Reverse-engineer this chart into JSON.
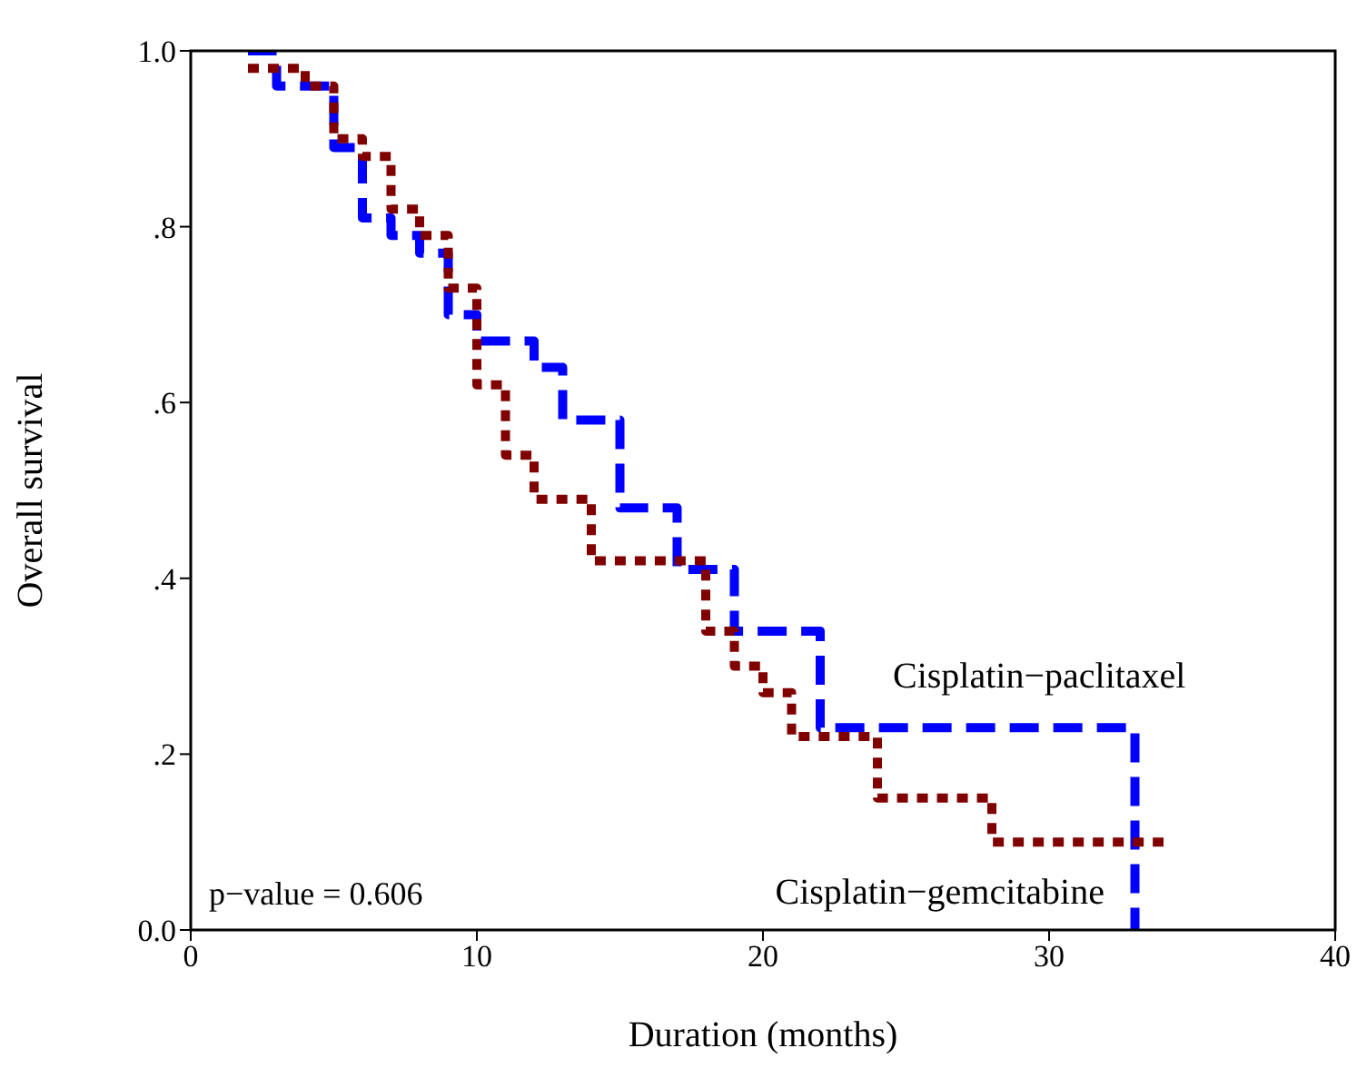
{
  "chart_data": {
    "type": "step",
    "xlabel": "Duration (months)",
    "ylabel": "Overall survival",
    "xlim": [
      0,
      40
    ],
    "xticks": [
      0,
      10,
      20,
      30,
      40
    ],
    "ylim": [
      0,
      1
    ],
    "yticks": [
      {
        "value": 0,
        "label": "0.0"
      },
      {
        "value": 0.2,
        "label": ".2"
      },
      {
        "value": 0.4,
        "label": ".4"
      },
      {
        "value": 0.6,
        "label": ".6"
      },
      {
        "value": 0.8,
        "label": ".8"
      },
      {
        "value": 1,
        "label": "1.0"
      }
    ],
    "marker": "none",
    "series": [
      {
        "name": "Cisplatin−paclitaxel",
        "color": "#0000ff",
        "line_style": "dashed",
        "x": [
          2,
          3,
          5,
          6,
          7,
          8,
          9,
          10,
          12,
          13,
          15,
          17,
          19,
          22,
          33
        ],
        "values": [
          1.0,
          0.96,
          0.89,
          0.81,
          0.79,
          0.77,
          0.7,
          0.67,
          0.64,
          0.58,
          0.48,
          0.41,
          0.34,
          0.23,
          0
        ]
      },
      {
        "name": "Cisplatin−gemcitabine",
        "color": "#800000",
        "line_style": "dotted",
        "x": [
          2,
          4,
          5,
          6,
          7,
          8,
          9,
          10,
          11,
          12,
          14,
          18,
          19,
          20,
          21,
          24,
          28,
          34
        ],
        "values": [
          0.98,
          0.96,
          0.9,
          0.88,
          0.82,
          0.79,
          0.73,
          0.62,
          0.54,
          0.49,
          0.42,
          0.34,
          0.3,
          0.27,
          0.22,
          0.15,
          0.1,
          0.1
        ]
      }
    ],
    "annotations": [
      "p−value = 0.606"
    ]
  }
}
